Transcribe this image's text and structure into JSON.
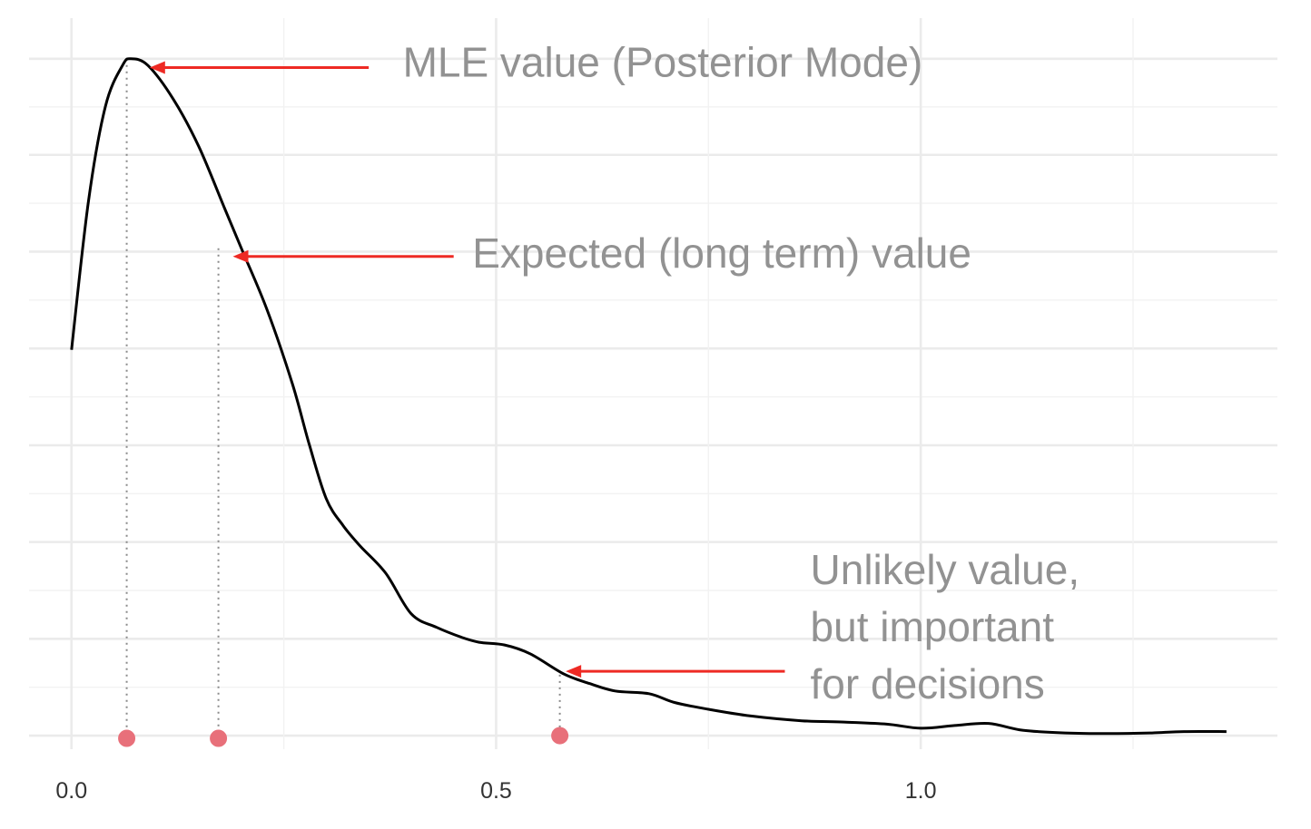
{
  "chart_data": {
    "type": "line",
    "xlim": [
      -0.05,
      1.42
    ],
    "ylim": [
      -0.02,
      1.06
    ],
    "y_ticks": [
      0.0,
      0.143,
      0.286,
      0.429,
      0.572,
      0.715,
      0.858,
      1.0
    ],
    "x_ticks": [
      0.0,
      0.5,
      1.0
    ],
    "x_tick_labels": [
      "0.0",
      "0.5",
      "1.0"
    ],
    "x_minor_ticks": [
      0.25,
      0.75,
      1.25
    ],
    "grid": true,
    "y_axis_labels": false,
    "series": [
      {
        "color": "#000000",
        "x": [
          0.0,
          0.02,
          0.04,
          0.06,
          0.07,
          0.09,
          0.12,
          0.15,
          0.18,
          0.2,
          0.23,
          0.26,
          0.28,
          0.3,
          0.32,
          0.34,
          0.37,
          0.4,
          0.43,
          0.46,
          0.48,
          0.51,
          0.54,
          0.58,
          0.61,
          0.64,
          0.68,
          0.71,
          0.75,
          0.8,
          0.86,
          0.91,
          0.96,
          1.0,
          1.04,
          1.08,
          1.12,
          1.17,
          1.22,
          1.27,
          1.31,
          1.36
        ],
        "y": [
          0.57,
          0.79,
          0.93,
          0.99,
          1.0,
          0.99,
          0.94,
          0.87,
          0.78,
          0.72,
          0.63,
          0.52,
          0.43,
          0.35,
          0.31,
          0.28,
          0.24,
          0.18,
          0.16,
          0.145,
          0.138,
          0.134,
          0.121,
          0.091,
          0.077,
          0.066,
          0.062,
          0.049,
          0.039,
          0.029,
          0.022,
          0.02,
          0.017,
          0.011,
          0.015,
          0.018,
          0.008,
          0.004,
          0.003,
          0.004,
          0.006,
          0.006
        ]
      }
    ],
    "points": [
      {
        "x": 0.065,
        "y": -0.004,
        "color": "#e8707a"
      },
      {
        "x": 0.173,
        "y": -0.004,
        "color": "#e8707a"
      },
      {
        "x": 0.575,
        "y": 0.0,
        "color": "#e8707a"
      }
    ],
    "guides": [
      {
        "x": 0.065,
        "y": 1.0
      },
      {
        "x": 0.173,
        "y": 0.72
      },
      {
        "x": 0.575,
        "y": 0.09
      }
    ],
    "arrow_color": "#ee2a24",
    "annotations": [
      {
        "lines": [
          "MLE value (Posterior Mode)"
        ],
        "text_x": 0.39,
        "text_y": 0.99,
        "arrow_from": [
          0.35,
          0.987
        ],
        "arrow_to": [
          0.092,
          0.987
        ]
      },
      {
        "lines": [
          "Expected (long term) value"
        ],
        "text_x": 0.472,
        "text_y": 0.708,
        "arrow_from": [
          0.45,
          0.708
        ],
        "arrow_to": [
          0.19,
          0.708
        ]
      },
      {
        "lines": [
          "Unlikely value,",
          "but important",
          "for decisions"
        ],
        "text_x": 0.87,
        "text_y": 0.24,
        "arrow_from": [
          0.84,
          0.095
        ],
        "arrow_to": [
          0.582,
          0.095
        ]
      }
    ]
  }
}
